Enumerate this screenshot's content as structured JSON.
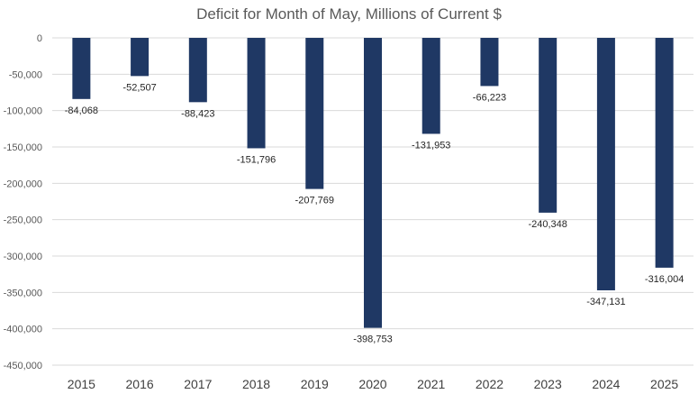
{
  "chart_data": {
    "type": "bar",
    "title": "Deficit for Month of May, Millions of Current $",
    "xlabel": "",
    "ylabel": "",
    "categories": [
      "2015",
      "2016",
      "2017",
      "2018",
      "2019",
      "2020",
      "2021",
      "2022",
      "2023",
      "2024",
      "2025"
    ],
    "values": [
      -84068,
      -52507,
      -88423,
      -151796,
      -207769,
      -398753,
      -131953,
      -66223,
      -240348,
      -347131,
      -316004
    ],
    "data_labels": [
      "-84,068",
      "-52,507",
      "-88,423",
      "-151,796",
      "-207,769",
      "-398,753",
      "-131,953",
      "-66,223",
      "-240,348",
      "-347,131",
      "-316,004"
    ],
    "ylim": [
      -450000,
      0
    ],
    "yticks": [
      0,
      -50000,
      -100000,
      -150000,
      -200000,
      -250000,
      -300000,
      -350000,
      -400000,
      -450000
    ],
    "ytick_labels": [
      "0",
      "-50,000",
      "-100,000",
      "-150,000",
      "-200,000",
      "-250,000",
      "-300,000",
      "-350,000",
      "-400,000",
      "-450,000"
    ],
    "grid": true,
    "legend": "none",
    "colors": {
      "bar": "#1f3864",
      "grid": "#d9d9d9",
      "title": "#595959"
    }
  }
}
